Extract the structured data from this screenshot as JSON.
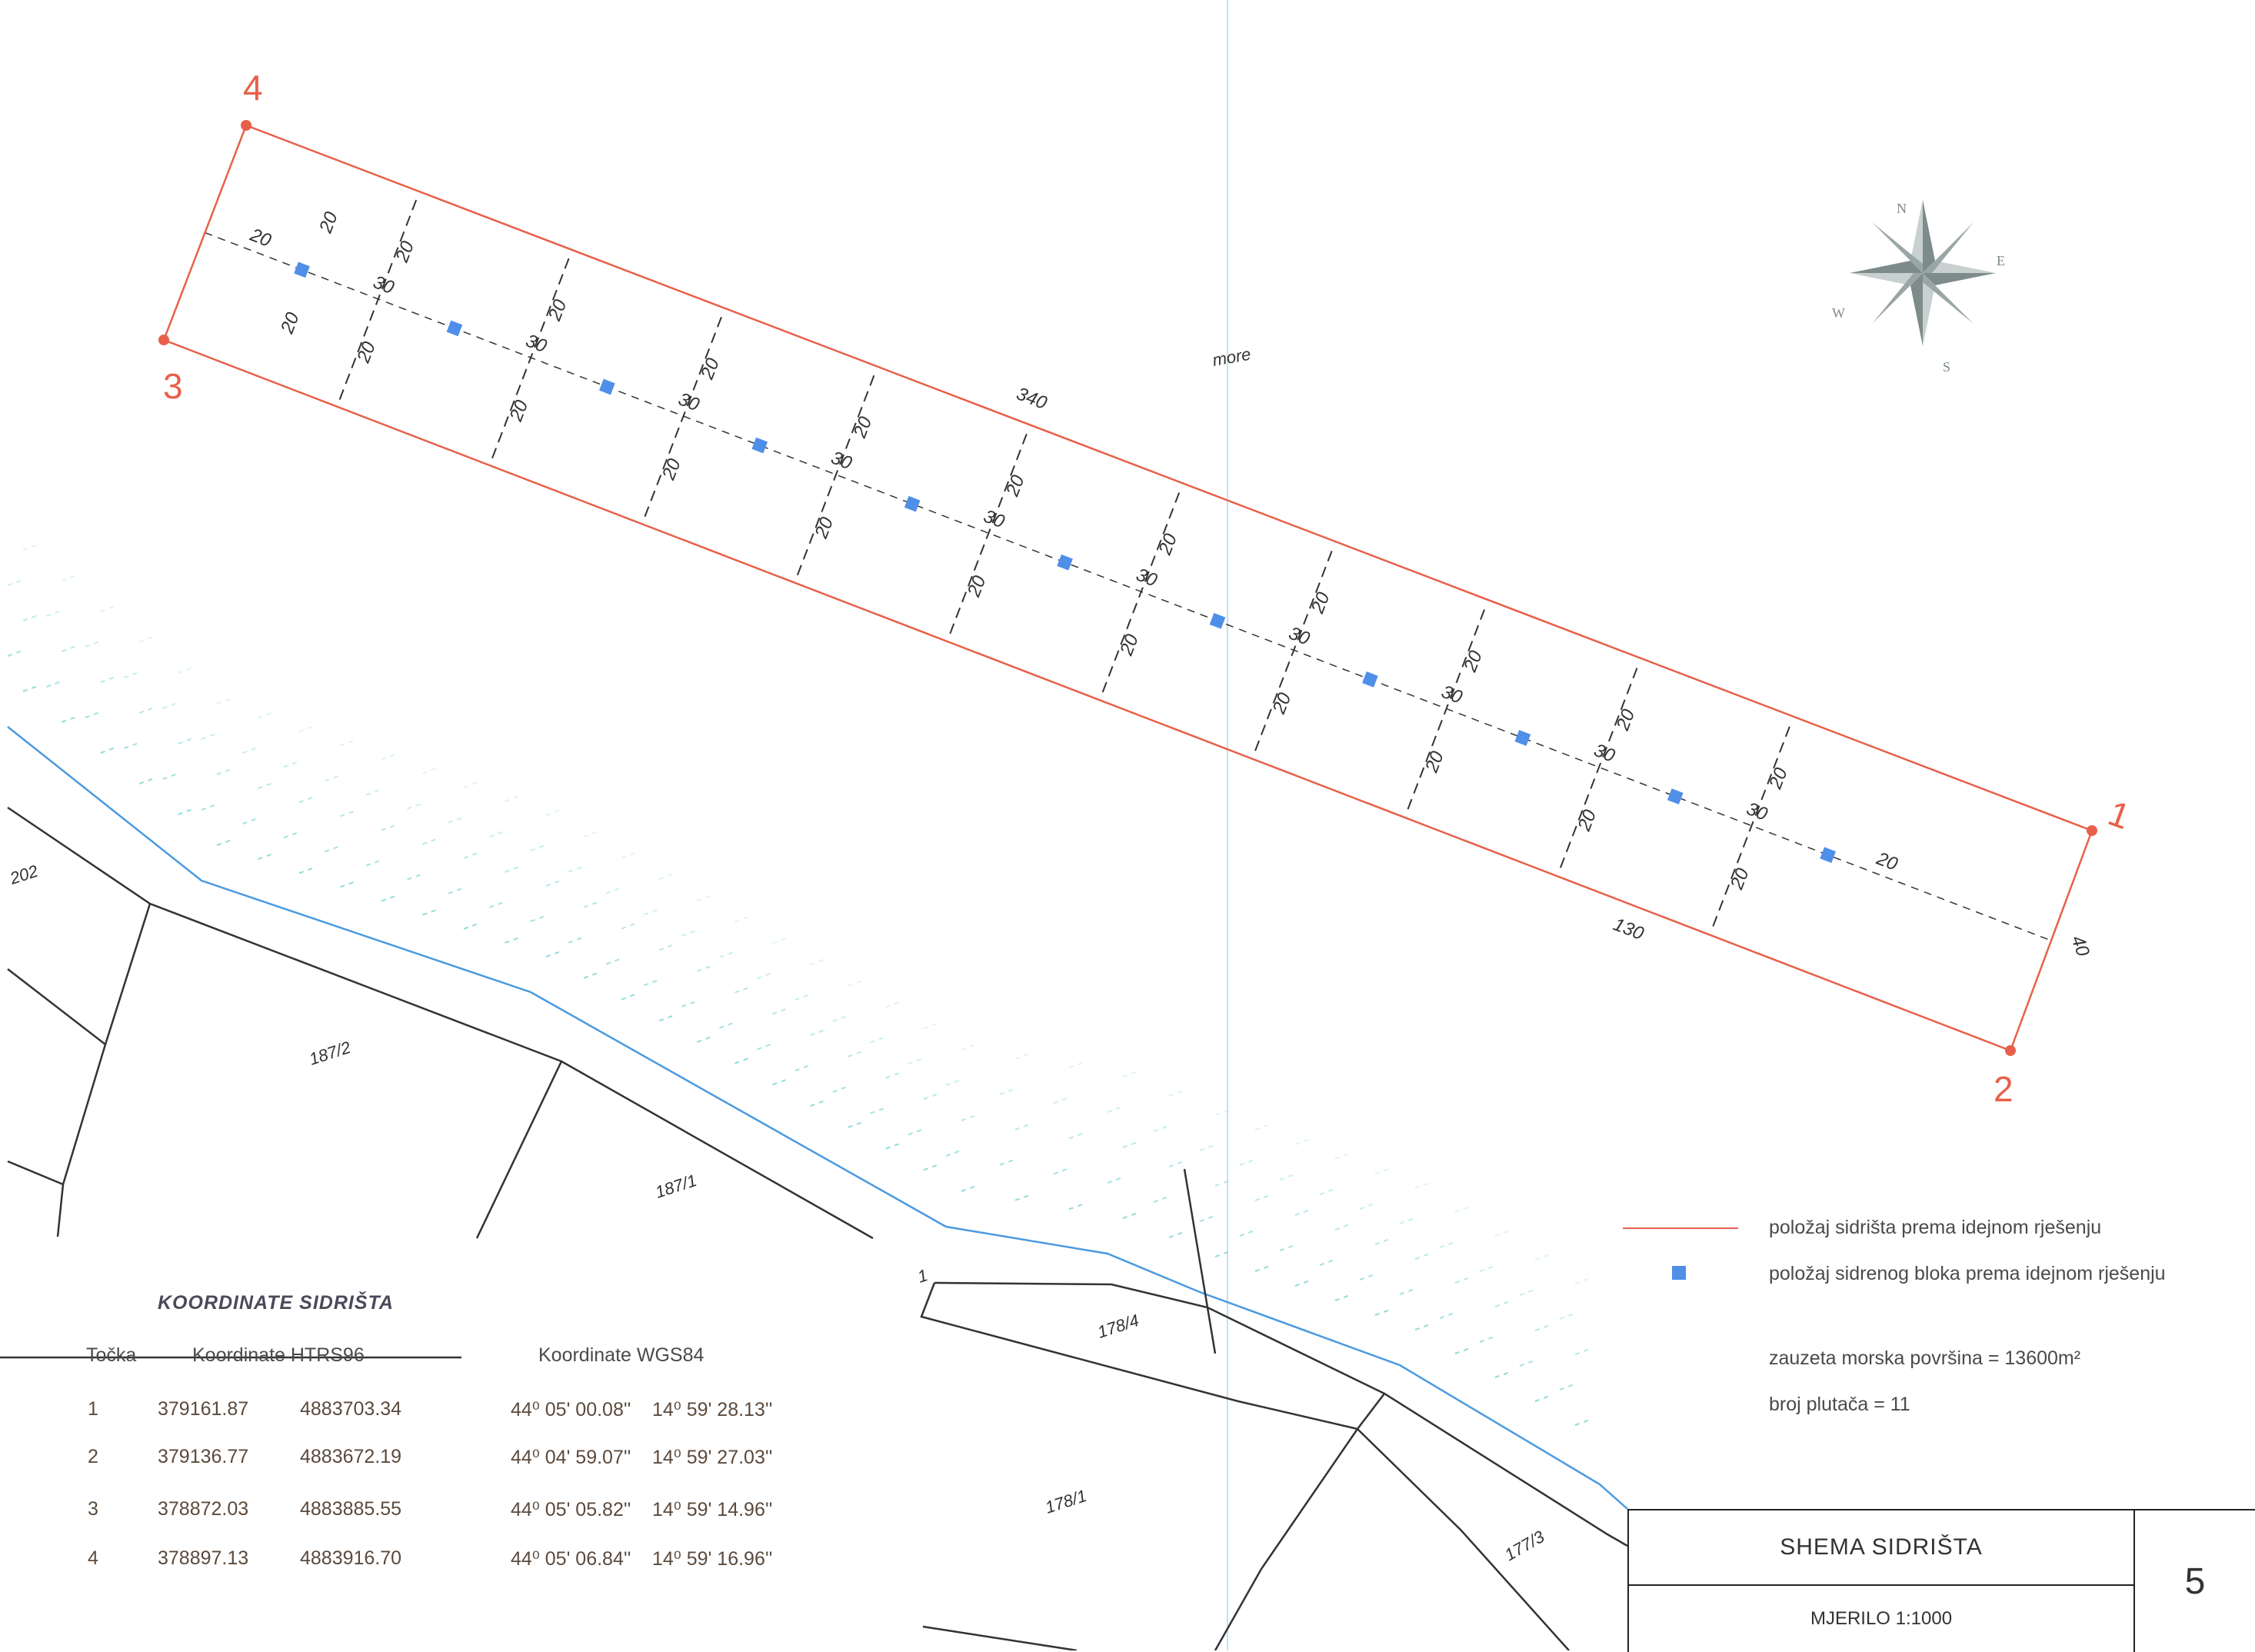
{
  "map": {
    "sea_label": "more",
    "dims": {
      "length_top": "340",
      "length_bottom": "130",
      "width_end": "40",
      "half_width": "20",
      "spacing": "30",
      "edge_offset": "20"
    },
    "corners": [
      {
        "label": "1"
      },
      {
        "label": "2"
      },
      {
        "label": "3"
      },
      {
        "label": "4"
      }
    ],
    "parcels": [
      "202",
      "187/2",
      "187/1",
      "178/4",
      "178/1",
      "177/3",
      "1"
    ],
    "compass": {
      "n": "N",
      "e": "E",
      "s": "S",
      "w": "W"
    },
    "block_count": 11
  },
  "legend": {
    "anchorage_line": "položaj sidrišta prema idejnom rješenju",
    "anchor_block": "položaj sidrenog bloka prema idejnom rješenju",
    "area": "zauzeta morska površina = 13600m²",
    "buoys": "broj plutača = 11"
  },
  "coordinates": {
    "title": "KOORDINATE SIDRIŠTA",
    "headers": {
      "point": "Točka",
      "htrs": "Koordinate HTRS96",
      "wgs": "Koordinate WGS84"
    },
    "rows": [
      {
        "point": "1",
        "y": "379161.87",
        "x": "4883703.34",
        "lat": "44⁰ 05' 00.08''",
        "lon": "14⁰ 59' 28.13''"
      },
      {
        "point": "2",
        "y": "379136.77",
        "x": "4883672.19",
        "lat": "44⁰ 04' 59.07''",
        "lon": "14⁰ 59' 27.03''"
      },
      {
        "point": "3",
        "y": "378872.03",
        "x": "4883885.55",
        "lat": "44⁰ 05' 05.82''",
        "lon": "14⁰ 59' 14.96''"
      },
      {
        "point": "4",
        "y": "378897.13",
        "x": "4883916.70",
        "lat": "44⁰ 05' 06.84''",
        "lon": "14⁰ 59' 16.96''"
      }
    ]
  },
  "titleblock": {
    "title": "SHEMA SIDRIŠTA",
    "scale": "MJERILO 1:1000",
    "sheet": "5"
  },
  "colors": {
    "boundary": "#e8604a",
    "block": "#4f8fe8",
    "coast": "#4a9ae0",
    "hatch": "#7fd6d6",
    "parcel": "#333333"
  }
}
